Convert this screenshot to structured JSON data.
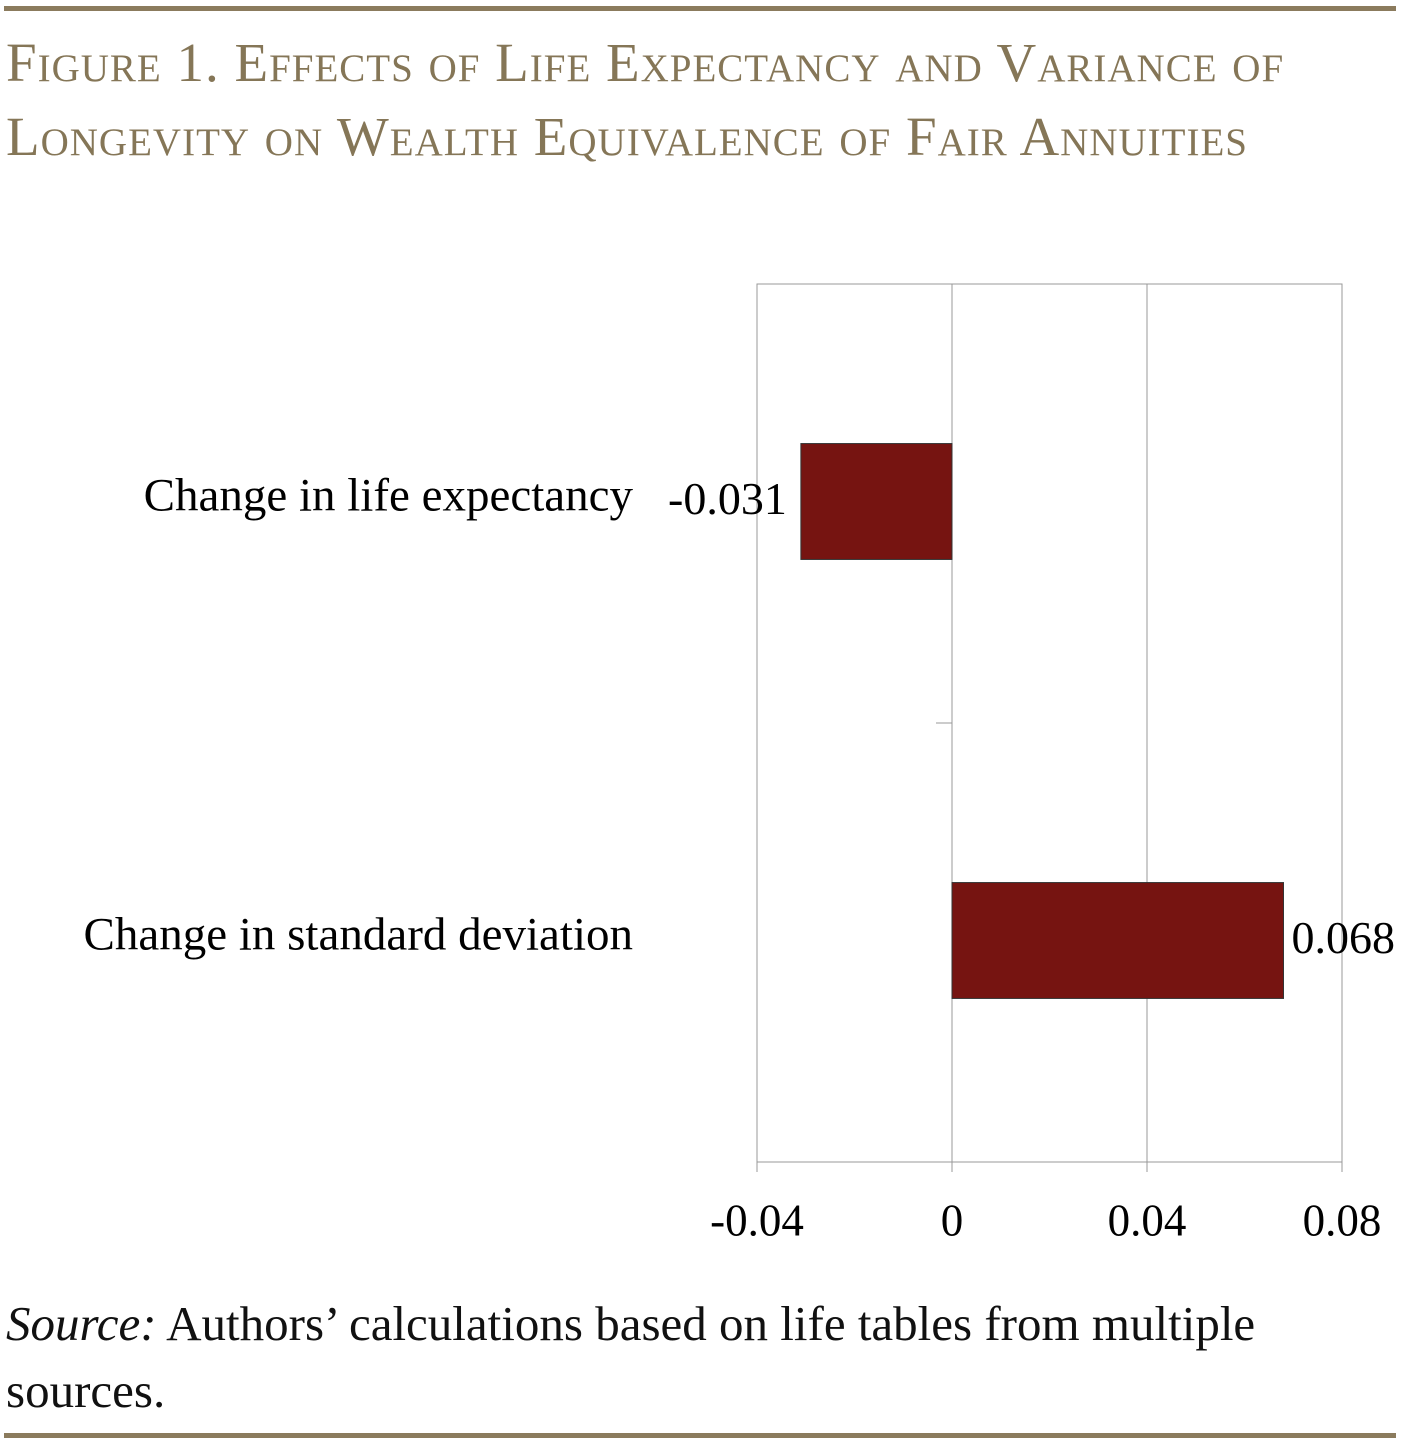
{
  "chart_data": {
    "type": "bar",
    "orientation": "horizontal",
    "title": "Figure 1. Effects of Life Expectancy and Variance of Longevity on Wealth Equivalence of Fair Annuities",
    "categories": [
      "Change in life expectancy",
      "Change in standard deviation"
    ],
    "values": [
      -0.031,
      0.068
    ],
    "color": "#761411",
    "xlim": [
      -0.04,
      0.08
    ],
    "xticks": [
      -0.04,
      0,
      0.04,
      0.08
    ],
    "grid": true,
    "source_label": "Source:",
    "source_text": "Authors’ calculations based on life tables from multiple sources."
  }
}
